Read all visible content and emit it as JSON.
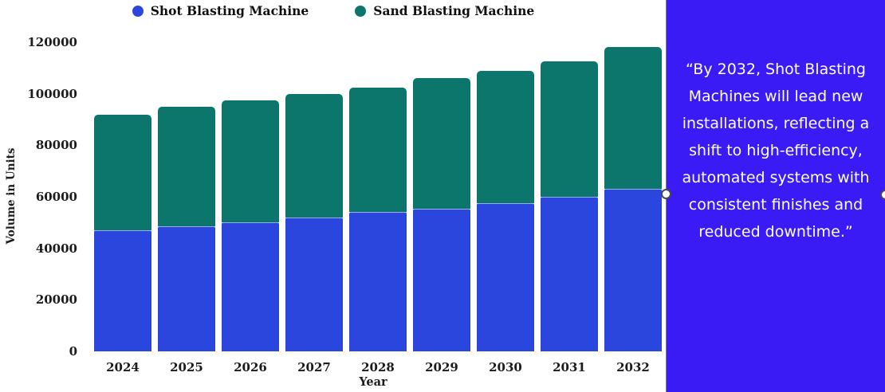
{
  "chart": {
    "legend_items": [
      {
        "label": "Shot Blasting Machine",
        "color": "#2a46dd"
      },
      {
        "label": "Sand Blasting Machine",
        "color": "#0d766c"
      }
    ]
  },
  "chart_data": {
    "type": "bar",
    "stacked": true,
    "categories": [
      "2024",
      "2025",
      "2026",
      "2027",
      "2028",
      "2029",
      "2030",
      "2031",
      "2032"
    ],
    "series": [
      {
        "name": "Shot Blasting Machine",
        "color": "#2a46dd",
        "values": [
          47000,
          48500,
          50000,
          52000,
          54000,
          55500,
          57500,
          60000,
          63000
        ]
      },
      {
        "name": "Sand Blasting Machine",
        "color": "#0d766c",
        "values": [
          45000,
          46500,
          47500,
          48000,
          48500,
          50500,
          51500,
          52500,
          55000
        ]
      }
    ],
    "totals": [
      92000,
      95000,
      97500,
      100000,
      102500,
      106000,
      109000,
      112500,
      118000
    ],
    "title": "",
    "xlabel": "Year",
    "ylabel": "Volume in Units",
    "ylim": [
      0,
      120000
    ],
    "ytick_step": 20000,
    "yticks": [
      0,
      20000,
      40000,
      60000,
      80000,
      100000,
      120000
    ],
    "grid": false,
    "legend_position": "top"
  },
  "panel": {
    "quote": "“By 2032, Shot Blasting Machines will lead new installations, reflecting a shift to high-efficiency, automated systems with consistent finishes and reduced downtime.”",
    "background": "#3a1bf5",
    "text_color": "#ffffff"
  }
}
